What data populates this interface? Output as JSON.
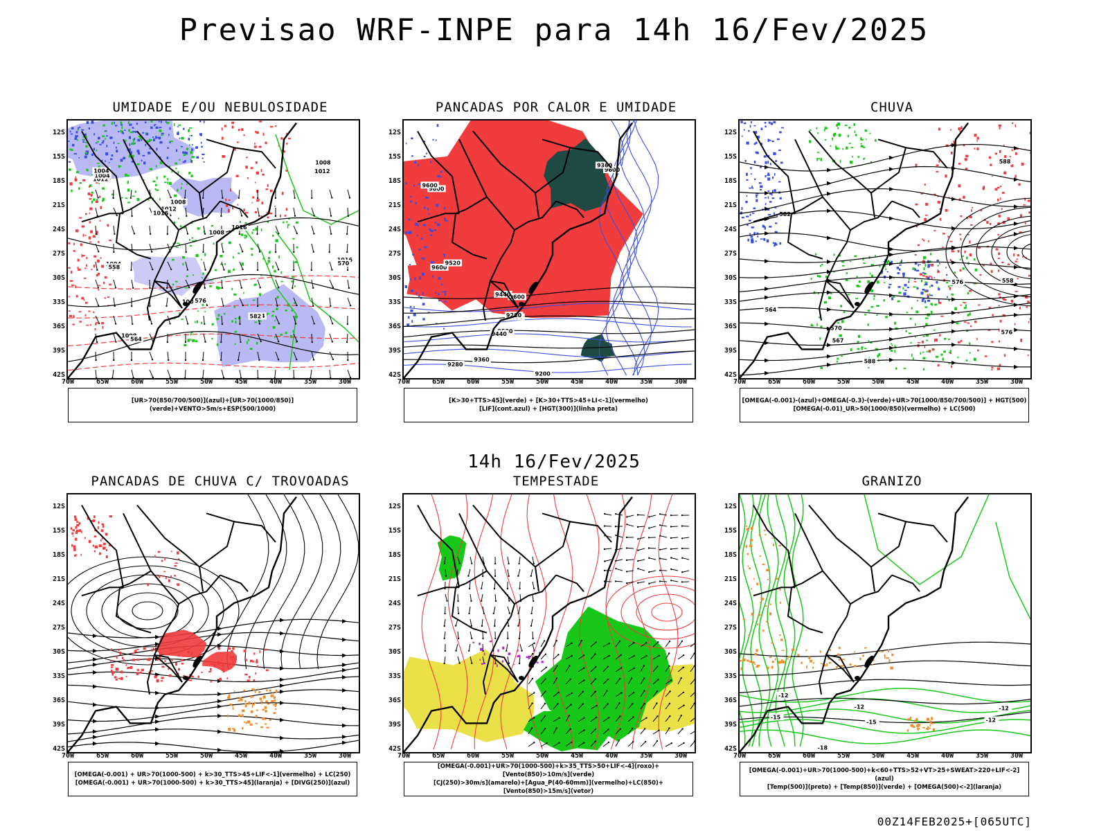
{
  "header": {
    "title": "Previsao WRF-INPE  para 14h 16/Fev/2025",
    "subtitle": "14h 16/Fev/2025",
    "footer": "00Z14FEB2025+[065UTC]"
  },
  "axes": {
    "lat_labels": [
      "12S",
      "15S",
      "18S",
      "21S",
      "24S",
      "27S",
      "30S",
      "33S",
      "36S",
      "39S",
      "42S"
    ],
    "lon_labels": [
      "70W",
      "65W",
      "60W",
      "55W",
      "50W",
      "45W",
      "40W",
      "35W",
      "30W"
    ]
  },
  "panels": [
    {
      "id": "umidade",
      "title": "UMIDADE E/OU NEBULOSIDADE",
      "legend": [
        "[UR>70(850/700/500)](azul)+[UR>70(1000/850)](verde)+VENTO>5m/s+ESP(500/1000)"
      ],
      "contour_labels": [
        "1012",
        "1012",
        "1008",
        "1012",
        "1016",
        "1008",
        "1004",
        "1008",
        "1004",
        "1004",
        "1016",
        "1016",
        "1008",
        "570",
        "576",
        "582",
        "564",
        "558",
        "1004",
        "1008"
      ]
    },
    {
      "id": "pancadas-calor",
      "title": "PANCADAS POR CALOR E UMIDADE",
      "legend": [
        "[K>30+TTS>45](verde) + [K>30+TTS>45+LI<-1](vermelho)",
        "[LIF](cont.azul) + [HGT(300)](linha preta)"
      ],
      "contour_labels": [
        "9600",
        "9600",
        "9600",
        "9600",
        "9600",
        "9520",
        "9440",
        "9360",
        "9280",
        "9200",
        "9600",
        "9520",
        "9440",
        "9360",
        "9280"
      ]
    },
    {
      "id": "chuva",
      "title": "CHUVA",
      "legend": [
        "[OMEGA(-0.001)-(azul)+OMEGA(-0.3)-(verde)+UR>70(1000/850/700/500)] + HGT(500)",
        "[OMEGA(-0.01)_UR>50(1000/850)(vermelho) + LC(500)"
      ],
      "contour_labels": [
        "588",
        "582",
        "576",
        "576",
        "570",
        "567",
        "564",
        "558",
        "588"
      ]
    },
    {
      "id": "pancadas-trovoadas",
      "title": "PANCADAS DE CHUVA C/ TROVOADAS",
      "legend": [
        "[OMEGA(-0.001) + UR>70(1000-500) + k>30_TTS>45+LIF<-1](vermelho) + LC(250)",
        "[OMEGA(-0.001) + UR>70(1000-500) + k>30_TTS>45](laranja) + [DIVG(250)](azul)"
      ],
      "contour_labels": []
    },
    {
      "id": "tempestade",
      "title": "TEMPESTADE",
      "legend": [
        "[OMEGA(-0.001)+UR>70(1000-500)+k>35_TTS>50+LIF<-4](roxo)+[Vento(850)>10m/s](verde)",
        "[CJ(250)>30m/s](amarelo)+[Agua_P(40-60mm)](vermelho)+LC(850)+[Vento(850)>15m/s](vetor)"
      ],
      "contour_labels": []
    },
    {
      "id": "granizo",
      "title": "GRANIZO",
      "legend": [
        "[OMEGA(-0.001)+UR>70(1000-500)+k<60+TTS>52+VT>25+SWEAT>220+LIF<-2](azul)",
        "[Temp(500)](preto) + [Temp(850)](verde) + [OMEGA(500)<-2](laranja)"
      ],
      "contour_labels": [
        "-12",
        "-15",
        "-12",
        "-15",
        "-18",
        "-12",
        "-12"
      ]
    }
  ],
  "colors": {
    "blue": "#3a4fe0",
    "lavender": "#a8a8f0",
    "green": "#18c818",
    "red": "#f03c3c",
    "dark_teal": "#1f4a44",
    "yellow": "#e6dc28",
    "orange": "#f08c28",
    "purple": "#b428d2"
  }
}
